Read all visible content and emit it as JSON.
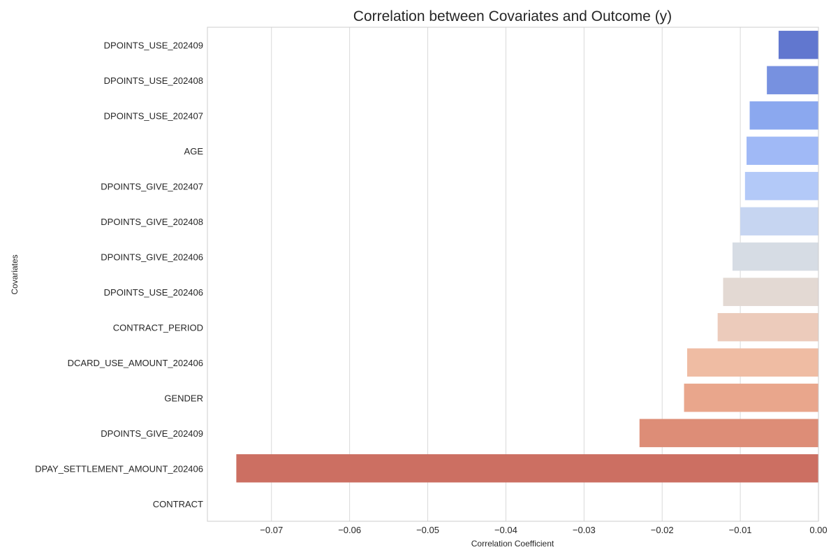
{
  "chart_data": {
    "type": "bar",
    "orientation": "horizontal",
    "title": "Correlation between Covariates and Outcome (y)",
    "xlabel": "Correlation Coefficient",
    "ylabel": "Covariates",
    "categories": [
      "DPOINTS_USE_202409",
      "DPOINTS_USE_202408",
      "DPOINTS_USE_202407",
      "AGE",
      "DPOINTS_GIVE_202407",
      "DPOINTS_GIVE_202408",
      "DPOINTS_GIVE_202406",
      "DPOINTS_USE_202406",
      "CONTRACT_PERIOD",
      "DCARD_USE_AMOUNT_202406",
      "GENDER",
      "DPOINTS_GIVE_202409",
      "DPAY_SETTLEMENT_AMOUNT_202406",
      "CONTRACT"
    ],
    "values": [
      -0.0051,
      -0.0066,
      -0.0088,
      -0.0092,
      -0.0094,
      -0.01,
      -0.011,
      -0.0122,
      -0.0129,
      -0.0168,
      -0.0172,
      -0.0229,
      -0.0745,
      null
    ],
    "colors": [
      "#6177cf",
      "#7791e0",
      "#8ba8ef",
      "#a0b9f6",
      "#b3c9f8",
      "#c6d5f1",
      "#d6dce4",
      "#e3d9d3",
      "#eccbbb",
      "#efbca3",
      "#e9a68c",
      "#dd8d77",
      "#cc6f62",
      "#ffffff"
    ],
    "xlim": [
      -0.0782,
      0.0
    ],
    "xticks": [
      -0.07,
      -0.06,
      -0.05,
      -0.04,
      -0.03,
      -0.02,
      -0.01,
      0.0
    ],
    "xtick_labels": [
      "−0.07",
      "−0.06",
      "−0.05",
      "−0.04",
      "−0.03",
      "−0.02",
      "−0.01",
      "0.00"
    ],
    "grid": "vertical",
    "legend": "none"
  }
}
